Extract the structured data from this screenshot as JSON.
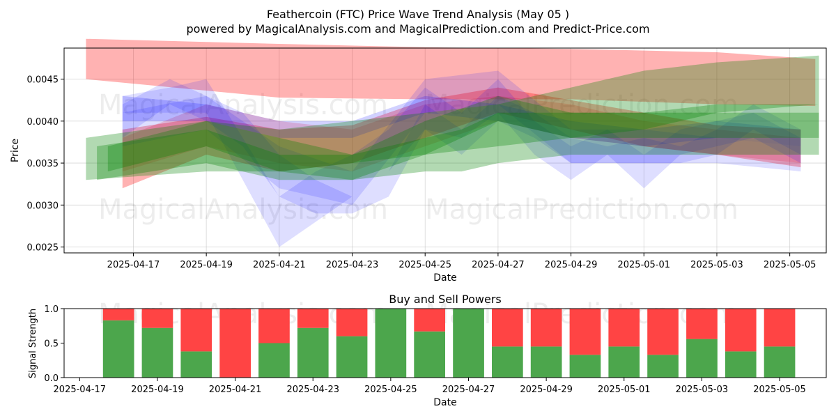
{
  "title_line1": "Feathercoin (FTC) Price Wave Trend Analysis (May 05 )",
  "title_line2": "powered by MagicalAnalysis.com and MagicalPrediction.com and Predict-Price.com",
  "watermarks": [
    "MagicalAnalysis.com",
    "MagicalPrediction.com"
  ],
  "colors": {
    "red": "#ff0000",
    "blue": "#0000ff",
    "green": "#008000",
    "buy": "#4ca64c",
    "sell": "#ff4444"
  },
  "chart_data": [
    {
      "type": "area",
      "xlabel": "Date",
      "ylabel": "Price",
      "x_ticks": [
        "2025-04-17",
        "2025-04-19",
        "2025-04-21",
        "2025-04-23",
        "2025-04-25",
        "2025-04-27",
        "2025-04-29",
        "2025-05-01",
        "2025-05-03",
        "2025-05-05"
      ],
      "y_ticks": [
        "0.0025",
        "0.0030",
        "0.0035",
        "0.0040",
        "0.0045"
      ],
      "ylim": [
        0.00243,
        0.00487
      ],
      "xlim": [
        "2025-04-15.1",
        "2025-05-06.0"
      ],
      "grid": true,
      "bands": [
        {
          "color": "red",
          "opacity": 0.3,
          "x": [
            "2025-04-15.7",
            "2025-04-21",
            "2025-04-25",
            "2025-04-29",
            "2025-05-03",
            "2025-05-05.7"
          ],
          "upper": [
            0.00498,
            0.00492,
            0.00488,
            0.00486,
            0.00482,
            0.00474
          ],
          "lower": [
            0.0045,
            0.00428,
            0.00426,
            0.00426,
            0.0042,
            0.00418
          ]
        },
        {
          "color": "red",
          "opacity": 0.3,
          "x": [
            "2025-04-16.7",
            "2025-04-19",
            "2025-04-21",
            "2025-04-23",
            "2025-04-25",
            "2025-04-27",
            "2025-04-29",
            "2025-05-01",
            "2025-05-03",
            "2025-05-05.3"
          ],
          "upper": [
            0.0039,
            0.00405,
            0.0039,
            0.00395,
            0.00425,
            0.0044,
            0.00425,
            0.0041,
            0.00395,
            0.0039
          ],
          "lower": [
            0.0032,
            0.0036,
            0.0034,
            0.0035,
            0.0038,
            0.0041,
            0.0039,
            0.0037,
            0.0036,
            0.00345
          ]
        },
        {
          "color": "red",
          "opacity": 0.18,
          "x": [
            "2025-04-16.7",
            "2025-04-19",
            "2025-04-21",
            "2025-04-23",
            "2025-04-25",
            "2025-04-27",
            "2025-04-29",
            "2025-05-01",
            "2025-05-03",
            "2025-05-05.3"
          ],
          "upper": [
            0.0038,
            0.0042,
            0.004,
            0.0039,
            0.0042,
            0.0043,
            0.0042,
            0.004,
            0.0039,
            0.0038
          ],
          "lower": [
            0.0034,
            0.0037,
            0.0035,
            0.0034,
            0.0037,
            0.004,
            0.0038,
            0.0037,
            0.0036,
            0.0035
          ]
        },
        {
          "color": "blue",
          "opacity": 0.13,
          "x": [
            "2025-04-16.7",
            "2025-04-18",
            "2025-04-19",
            "2025-04-20",
            "2025-04-21",
            "2025-04-22",
            "2025-04-23",
            "2025-04-24",
            "2025-04-25",
            "2025-04-26",
            "2025-04-27",
            "2025-04-28",
            "2025-04-29",
            "2025-04-30",
            "2025-05-01",
            "2025-05-02",
            "2025-05-03",
            "2025-05-04",
            "2025-05-05.3"
          ],
          "upper": [
            0.0043,
            0.0044,
            0.0045,
            0.0038,
            0.0031,
            0.0034,
            0.0036,
            0.0039,
            0.0044,
            0.0041,
            0.0045,
            0.004,
            0.0037,
            0.0039,
            0.0036,
            0.0039,
            0.004,
            0.0041,
            0.0038
          ],
          "lower": [
            0.0041,
            0.0041,
            0.0041,
            0.0033,
            0.0025,
            0.0028,
            0.0031,
            0.0034,
            0.0039,
            0.0038,
            0.0041,
            0.0036,
            0.0033,
            0.0036,
            0.0032,
            0.0036,
            0.0037,
            0.0038,
            0.0035
          ]
        },
        {
          "color": "blue",
          "opacity": 0.13,
          "x": [
            "2025-04-16.7",
            "2025-04-18",
            "2025-04-19",
            "2025-04-20",
            "2025-04-21",
            "2025-04-22",
            "2025-04-23",
            "2025-04-24",
            "2025-04-25",
            "2025-04-26",
            "2025-04-27",
            "2025-04-28",
            "2025-04-29",
            "2025-04-30",
            "2025-05-01",
            "2025-05-02",
            "2025-05-03",
            "2025-05-04",
            "2025-05-05.3"
          ],
          "upper": [
            0.0042,
            0.0045,
            0.0043,
            0.0041,
            0.0036,
            0.0033,
            0.0031,
            0.0034,
            0.0042,
            0.0039,
            0.0043,
            0.0041,
            0.0038,
            0.0037,
            0.0038,
            0.0037,
            0.0039,
            0.0042,
            0.0039
          ],
          "lower": [
            0.0038,
            0.0042,
            0.004,
            0.0037,
            0.0031,
            0.0029,
            0.0029,
            0.0031,
            0.0039,
            0.0036,
            0.004,
            0.0038,
            0.0035,
            0.0035,
            0.0035,
            0.0035,
            0.0036,
            0.0039,
            0.0036
          ]
        },
        {
          "color": "blue",
          "opacity": 0.13,
          "x": [
            "2025-04-16.7",
            "2025-04-19",
            "2025-04-21",
            "2025-04-23",
            "2025-04-25",
            "2025-04-27",
            "2025-04-29",
            "2025-05-01",
            "2025-05-03",
            "2025-05-05.3"
          ],
          "upper": [
            0.0041,
            0.0043,
            0.0037,
            0.0034,
            0.0045,
            0.0046,
            0.0039,
            0.0039,
            0.0038,
            0.0037
          ],
          "lower": [
            0.0037,
            0.0039,
            0.0032,
            0.003,
            0.0041,
            0.0042,
            0.0035,
            0.0035,
            0.0035,
            0.0034
          ]
        },
        {
          "color": "blue",
          "opacity": 0.18,
          "x": [
            "2025-04-16.7",
            "2025-04-19",
            "2025-04-21",
            "2025-04-23",
            "2025-04-25",
            "2025-04-27",
            "2025-04-29",
            "2025-05-01",
            "2025-05-03",
            "2025-05-05.3"
          ],
          "upper": [
            0.0043,
            0.0042,
            0.004,
            0.004,
            0.0043,
            0.0042,
            0.004,
            0.0039,
            0.004,
            0.0039
          ],
          "lower": [
            0.004,
            0.004,
            0.0038,
            0.0038,
            0.0041,
            0.004,
            0.0038,
            0.0037,
            0.0038,
            0.0037
          ]
        },
        {
          "color": "green",
          "opacity": 0.3,
          "x": [
            "2025-04-15.7",
            "2025-04-19",
            "2025-04-21",
            "2025-04-23",
            "2025-04-25",
            "2025-04-27",
            "2025-04-29",
            "2025-05-01",
            "2025-05-03",
            "2025-05-05.8"
          ],
          "upper": [
            0.0038,
            0.004,
            0.0039,
            0.004,
            0.0041,
            0.0042,
            0.0044,
            0.0046,
            0.0047,
            0.00478
          ],
          "lower": [
            0.0033,
            0.0034,
            0.0034,
            0.0035,
            0.0036,
            0.0037,
            0.0038,
            0.0039,
            0.0041,
            0.0042
          ]
        },
        {
          "color": "green",
          "opacity": 0.3,
          "x": [
            "2025-04-16",
            "2025-04-19",
            "2025-04-21",
            "2025-04-23",
            "2025-04-25",
            "2025-04-26",
            "2025-04-27",
            "2025-04-29",
            "2025-05-01",
            "2025-05-03",
            "2025-05-05.8"
          ],
          "upper": [
            0.0037,
            0.0039,
            0.0036,
            0.0036,
            0.0038,
            0.0039,
            0.0041,
            0.0041,
            0.0041,
            0.0042,
            0.0042
          ],
          "lower": [
            0.0033,
            0.0035,
            0.0033,
            0.0033,
            0.0034,
            0.0034,
            0.0035,
            0.0036,
            0.0036,
            0.0036,
            0.0036
          ]
        },
        {
          "color": "green",
          "opacity": 0.3,
          "x": [
            "2025-04-16.3",
            "2025-04-19",
            "2025-04-21",
            "2025-04-23",
            "2025-04-25",
            "2025-04-27",
            "2025-04-29",
            "2025-05-01",
            "2025-05-03",
            "2025-05-05.8"
          ],
          "upper": [
            0.0037,
            0.004,
            0.0038,
            0.0036,
            0.004,
            0.0043,
            0.0041,
            0.0041,
            0.0041,
            0.0041
          ],
          "lower": [
            0.0034,
            0.0037,
            0.0034,
            0.0033,
            0.0036,
            0.004,
            0.0038,
            0.0038,
            0.0038,
            0.0038
          ]
        }
      ]
    },
    {
      "type": "bar",
      "title": "Buy and Sell Powers",
      "xlabel": "Date",
      "ylabel": "Signal Strength",
      "x_ticks": [
        "2025-04-17",
        "2025-04-19",
        "2025-04-21",
        "2025-04-23",
        "2025-04-25",
        "2025-04-27",
        "2025-04-29",
        "2025-05-01",
        "2025-05-03",
        "2025-05-05"
      ],
      "y_ticks": [
        "0.0",
        "0.5",
        "1.0"
      ],
      "ylim": [
        0,
        1
      ],
      "categories": [
        "2025-04-18",
        "2025-04-19",
        "2025-04-20",
        "2025-04-21",
        "2025-04-22",
        "2025-04-23",
        "2025-04-24",
        "2025-04-25",
        "2025-04-26",
        "2025-04-27",
        "2025-04-28",
        "2025-04-29",
        "2025-04-30",
        "2025-05-01",
        "2025-05-02",
        "2025-05-03",
        "2025-05-04",
        "2025-05-05"
      ],
      "series": [
        {
          "values": [
            0.83,
            0.72,
            0.38,
            0.0,
            0.5,
            0.72,
            0.6,
            1.0,
            0.67,
            1.0,
            0.45,
            0.45,
            0.33,
            0.45,
            0.33,
            0.56,
            0.38,
            0.45
          ]
        },
        {
          "values": [
            0.17,
            0.28,
            0.62,
            1.0,
            0.5,
            0.28,
            0.4,
            0.0,
            0.33,
            0.0,
            0.55,
            0.55,
            0.67,
            0.55,
            0.67,
            0.44,
            0.62,
            0.55
          ]
        }
      ]
    }
  ]
}
